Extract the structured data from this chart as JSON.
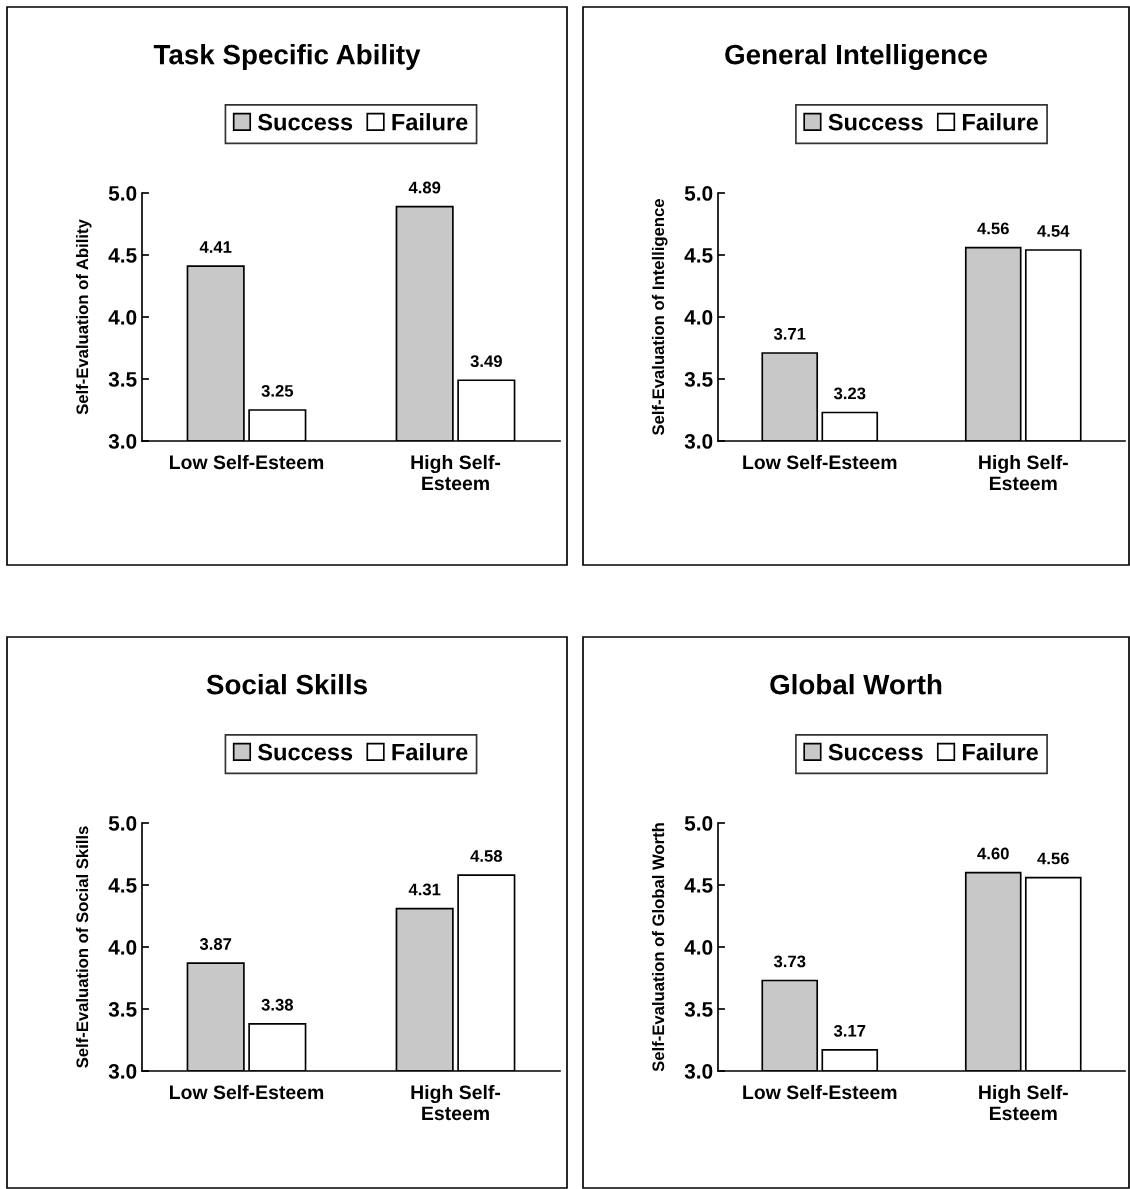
{
  "chart_data": [
    {
      "type": "bar",
      "title": "Task Specific Ability",
      "ylabel": "Self-Evaluation of Ability",
      "categories": [
        "Low Self-Esteem",
        "High Self-\nEsteem"
      ],
      "series": [
        {
          "name": "Success",
          "color": "#c8c8c8",
          "values": [
            4.41,
            4.89
          ]
        },
        {
          "name": "Failure",
          "color": "#ffffff",
          "values": [
            3.25,
            3.49
          ]
        }
      ],
      "ylim": [
        3.0,
        5.0
      ],
      "yticks": [
        {
          "value": 3.0,
          "label": "3.0"
        },
        {
          "value": 3.5,
          "label": "3.5"
        },
        {
          "value": 4.0,
          "label": "4.0"
        },
        {
          "value": 4.5,
          "label": "4.5"
        },
        {
          "value": 5.0,
          "label": "5.0"
        }
      ],
      "data_labels": true,
      "legend": "top",
      "grid": false
    },
    {
      "type": "bar",
      "title": "General Intelligence",
      "ylabel": "Self-Evaluation of Intelligence",
      "categories": [
        "Low Self-Esteem",
        "High Self-\nEsteem"
      ],
      "series": [
        {
          "name": "Success",
          "color": "#c8c8c8",
          "values": [
            3.71,
            4.56
          ]
        },
        {
          "name": "Failure",
          "color": "#ffffff",
          "values": [
            3.23,
            4.54
          ]
        }
      ],
      "ylim": [
        3.0,
        5.0
      ],
      "yticks": [
        {
          "value": 3.0,
          "label": "3.0"
        },
        {
          "value": 3.5,
          "label": "3.5"
        },
        {
          "value": 4.0,
          "label": "4.0"
        },
        {
          "value": 4.5,
          "label": "4.5"
        },
        {
          "value": 5.0,
          "label": "5.0"
        }
      ],
      "data_labels": true,
      "legend": "top",
      "grid": false
    },
    {
      "type": "bar",
      "title": "Social Skills",
      "ylabel": "Self-Evaluation of Social Skills",
      "categories": [
        "Low Self-Esteem",
        "High Self-\nEsteem"
      ],
      "series": [
        {
          "name": "Success",
          "color": "#c8c8c8",
          "values": [
            3.87,
            4.31
          ]
        },
        {
          "name": "Failure",
          "color": "#ffffff",
          "values": [
            3.38,
            4.58
          ]
        }
      ],
      "ylim": [
        3.0,
        5.0
      ],
      "yticks": [
        {
          "value": 3.0,
          "label": "3.0"
        },
        {
          "value": 3.5,
          "label": "3.5"
        },
        {
          "value": 4.0,
          "label": "4.0"
        },
        {
          "value": 4.5,
          "label": "4.5"
        },
        {
          "value": 5.0,
          "label": "5.0"
        }
      ],
      "data_labels": true,
      "legend": "top",
      "grid": false
    },
    {
      "type": "bar",
      "title": "Global Worth",
      "ylabel": "Self-Evaluation of Global Worth",
      "categories": [
        "Low Self-Esteem",
        "High Self-\nEsteem"
      ],
      "series": [
        {
          "name": "Success",
          "color": "#c8c8c8",
          "values": [
            3.73,
            4.6
          ],
          "value_labels": [
            "3.73",
            "4.60"
          ]
        },
        {
          "name": "Failure",
          "color": "#ffffff",
          "values": [
            3.17,
            4.56
          ],
          "value_labels": [
            "3.17",
            "4.56"
          ]
        }
      ],
      "ylim": [
        3.0,
        5.0
      ],
      "yticks": [
        {
          "value": 3.0,
          "label": "3.0"
        },
        {
          "value": 3.5,
          "label": "3.5"
        },
        {
          "value": 4.0,
          "label": "4.0"
        },
        {
          "value": 4.5,
          "label": "4.5"
        },
        {
          "value": 5.0,
          "label": "5.0"
        }
      ],
      "legend": "top",
      "grid": false
    }
  ]
}
